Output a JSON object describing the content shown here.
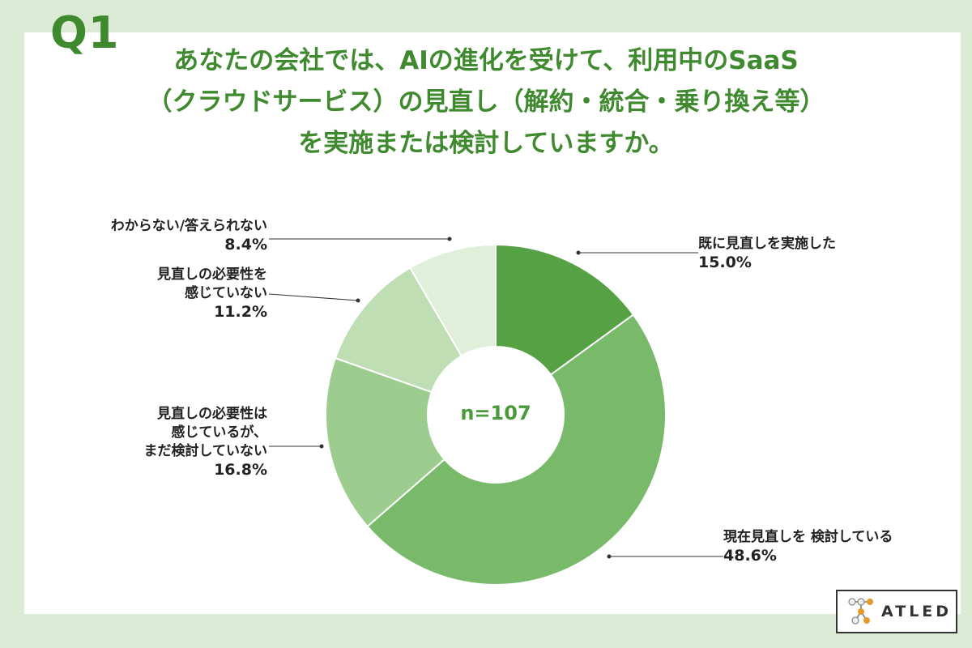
{
  "question_number": "Q1",
  "question_lines": [
    "あなたの会社では、AIの進化を受けて、利用中のSaaS",
    "（クラウドサービス）の見直し（解約・統合・乗り換え等）",
    "を実施または検討していますか。"
  ],
  "logo_text": "ATLED",
  "chart_data": {
    "type": "pie",
    "donut": true,
    "center_label": "n=107",
    "slices": [
      {
        "label_lines": [
          "既に見直しを実施した"
        ],
        "value": 15.0,
        "value_label": "15.0%",
        "color": "#56a144"
      },
      {
        "label_lines": [
          "現在見直しを",
          "検討している"
        ],
        "value": 48.6,
        "value_label": "48.6%",
        "color": "#79b96a"
      },
      {
        "label_lines": [
          "見直しの必要性は",
          "感じているが、",
          "まだ検討していない"
        ],
        "value": 16.8,
        "value_label": "16.8%",
        "color": "#9ccd8f"
      },
      {
        "label_lines": [
          "見直しの必要性を",
          "感じていない"
        ],
        "value": 11.2,
        "value_label": "11.2%",
        "color": "#bfdeb4"
      },
      {
        "label_lines": [
          "わからない/答えられない"
        ],
        "value": 8.4,
        "value_label": "8.4%",
        "color": "#e0efd9"
      }
    ]
  }
}
